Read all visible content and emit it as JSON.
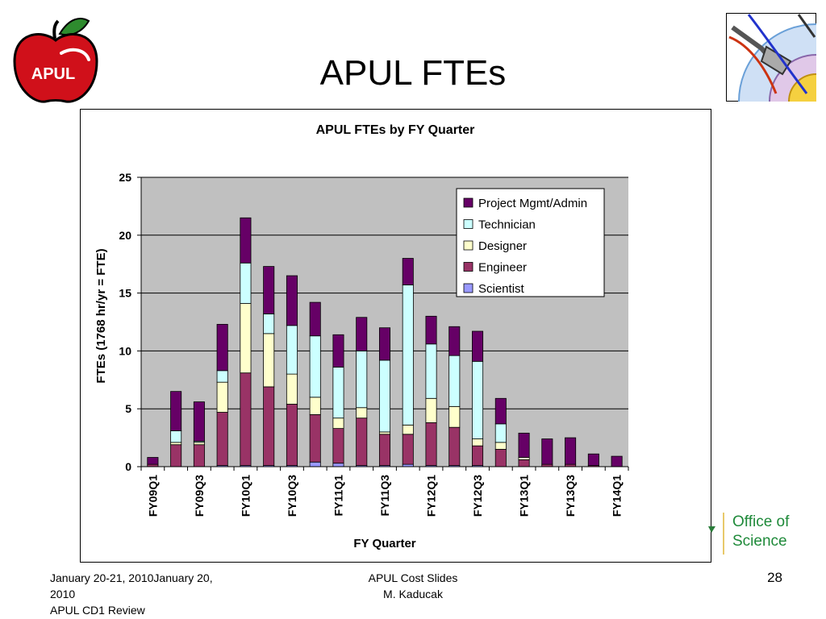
{
  "slide": {
    "title": "APUL FTEs",
    "logo_text": "APUL",
    "footer_left_line1": "January 20-21, 2010January 20,",
    "footer_left_line2": "2010",
    "footer_left_line3": "APUL CD1 Review",
    "footer_center_line1": "APUL Cost Slides",
    "footer_center_line2": "M. Kaducak",
    "page_number": "28",
    "office_line1": "Office of",
    "office_line2": "Science"
  },
  "chart_data": {
    "type": "bar",
    "stacked": true,
    "title": "APUL FTEs by FY Quarter",
    "xlabel": "FY Quarter",
    "ylabel": "FTEs (1768 hr/yr = FTE)",
    "ylim": [
      0,
      25
    ],
    "yticks": [
      "0",
      "5",
      "10",
      "15",
      "20",
      "25"
    ],
    "grid": true,
    "legend_position": "top-right",
    "categories": [
      "FY09Q1",
      "FY09Q2",
      "FY09Q3",
      "FY09Q4",
      "FY10Q1",
      "FY10Q2",
      "FY10Q3",
      "FY10Q4",
      "FY11Q1",
      "FY11Q2",
      "FY11Q3",
      "FY11Q4",
      "FY12Q1",
      "FY12Q2",
      "FY12Q3",
      "FY12Q4",
      "FY13Q1",
      "FY13Q2",
      "FY13Q3",
      "FY13Q4",
      "FY14Q1"
    ],
    "xtick_labels": [
      "FY09Q1",
      "",
      "FY09Q3",
      "",
      "FY10Q1",
      "",
      "FY10Q3",
      "",
      "FY11Q1",
      "",
      "FY11Q3",
      "",
      "FY12Q1",
      "",
      "FY12Q3",
      "",
      "FY13Q1",
      "",
      "FY13Q3",
      "",
      "FY14Q1"
    ],
    "series": [
      {
        "name": "Scientist",
        "color": "#9999ff",
        "values": [
          0,
          0,
          0,
          0.1,
          0.1,
          0.1,
          0.1,
          0.4,
          0.3,
          0.1,
          0.1,
          0.2,
          0.1,
          0.1,
          0.1,
          0,
          0,
          0,
          0,
          0,
          0
        ]
      },
      {
        "name": "Engineer",
        "color": "#993366",
        "values": [
          0.2,
          1.9,
          1.9,
          4.6,
          8.0,
          6.8,
          5.3,
          4.1,
          3.0,
          4.1,
          2.7,
          2.6,
          3.7,
          3.3,
          1.7,
          1.5,
          0.6,
          0.2,
          0.2,
          0.1,
          0
        ]
      },
      {
        "name": "Designer",
        "color": "#ffffcc",
        "values": [
          0,
          0.2,
          0.2,
          2.6,
          6.0,
          4.6,
          2.6,
          1.5,
          0.9,
          0.9,
          0.2,
          0.8,
          2.1,
          1.8,
          0.6,
          0.6,
          0.2,
          0,
          0,
          0,
          0
        ]
      },
      {
        "name": "Technician",
        "color": "#ccffff",
        "values": [
          0,
          1.0,
          0.1,
          1.0,
          3.5,
          1.7,
          4.2,
          5.3,
          4.4,
          4.9,
          6.2,
          12.1,
          4.7,
          4.4,
          6.7,
          1.6,
          0,
          0,
          0,
          0,
          0
        ]
      },
      {
        "name": "Project Mgmt/Admin",
        "color": "#660066",
        "values": [
          0.6,
          3.4,
          3.4,
          4.0,
          3.9,
          4.1,
          4.3,
          2.9,
          2.8,
          2.9,
          2.8,
          2.3,
          2.4,
          2.5,
          2.6,
          2.2,
          2.1,
          2.2,
          2.3,
          1.0,
          0.9
        ]
      }
    ],
    "legend_order": [
      "Project Mgmt/Admin",
      "Technician",
      "Designer",
      "Engineer",
      "Scientist"
    ]
  }
}
